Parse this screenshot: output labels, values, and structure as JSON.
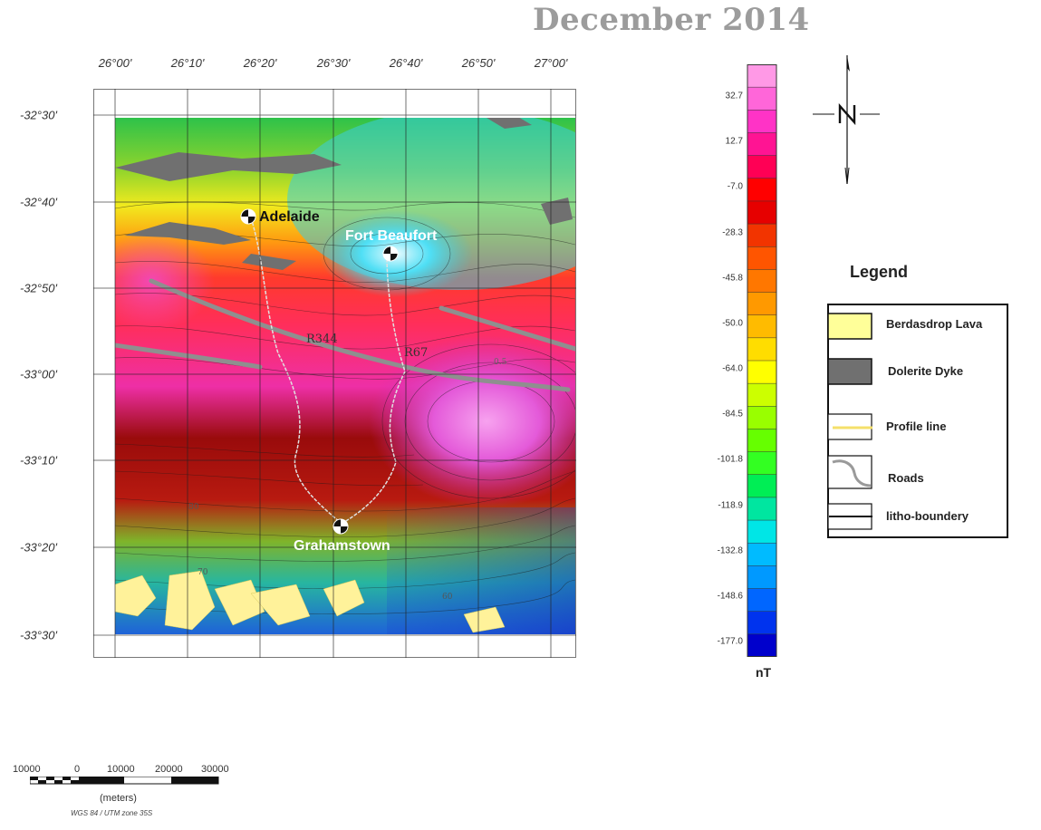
{
  "title": "December 2014",
  "longitude_ticks": [
    "26°00'",
    "26°10'",
    "26°20'",
    "26°30'",
    "26°40'",
    "26°50'",
    "27°00'"
  ],
  "latitude_ticks": [
    "-32°30'",
    "-32°40'",
    "-32°50'",
    "-33°00'",
    "-33°10'",
    "-33°20'",
    "-33°30'"
  ],
  "towns": [
    "Adelaide",
    "Fort Beaufort",
    "Grahamstown"
  ],
  "roads": [
    "R344",
    "R67"
  ],
  "contour_labels": [
    "0.5",
    "60",
    "70",
    "80"
  ],
  "colorbar": {
    "labels": [
      "32.7",
      "12.7",
      "-7.0",
      "-28.3",
      "-45.8",
      "-50.0",
      "-64.0",
      "-84.5",
      "-101.8",
      "-118.9",
      "-132.8",
      "-148.6",
      "-177.0"
    ],
    "unit": "nT",
    "colors": [
      "#ff99e6",
      "#ff66d9",
      "#ff33c6",
      "#ff1493",
      "#ff0055",
      "#ff0000",
      "#e60000",
      "#f23400",
      "#ff5500",
      "#ff7700",
      "#ff9900",
      "#ffbb00",
      "#ffdd00",
      "#ffff00",
      "#ccff00",
      "#99ff00",
      "#66ff00",
      "#33ff22",
      "#00ee55",
      "#00e6a0",
      "#00e6e6",
      "#00bbff",
      "#0099ff",
      "#0066ff",
      "#0033ee",
      "#0000cc"
    ]
  },
  "legend": {
    "title": "Legend",
    "items": [
      {
        "label": "Berdasdrop Lava",
        "color": "#ffff99"
      },
      {
        "label": "Dolerite Dyke",
        "color": "#707070"
      },
      {
        "label": "Profile line",
        "color": "#f5e06b"
      },
      {
        "label": "Roads",
        "color": "#9a9a9a"
      },
      {
        "label": "litho-boundery",
        "color": "#111111"
      }
    ]
  },
  "scale_bar": {
    "ticks": [
      "10000",
      "0",
      "10000",
      "20000",
      "30000"
    ],
    "unit": "(meters)",
    "projection": "WGS 84 / UTM zone 35S"
  }
}
